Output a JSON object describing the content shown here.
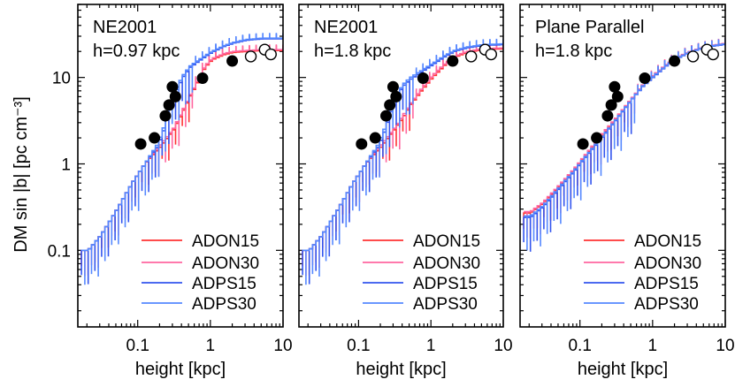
{
  "chart_data": [
    {
      "type": "line",
      "panel": 1,
      "title": "NE2001",
      "subtitle": "h=0.97 kpc",
      "xlabel": "height [kpc]",
      "ylabel": "DM sin |b| [pc cm⁻³]",
      "xscale": "log",
      "yscale": "log",
      "xlim": [
        0.015,
        10
      ],
      "ylim": [
        0.013,
        70
      ],
      "xticks": [
        {
          "v": 0.1,
          "label": "0.1"
        },
        {
          "v": 1,
          "label": "1"
        },
        {
          "v": 10,
          "label": "10"
        }
      ],
      "yticks": [
        {
          "v": 0.1,
          "label": "0.1"
        },
        {
          "v": 1,
          "label": "1"
        },
        {
          "v": 10,
          "label": "10"
        }
      ],
      "legend_position": "bottom-right",
      "series": [
        {
          "name": "ADON15",
          "color": "#ff3333",
          "x": [
            0.02,
            0.03,
            0.05,
            0.08,
            0.12,
            0.2,
            0.3,
            0.4,
            0.5,
            0.6,
            0.7,
            0.8,
            1,
            1.5,
            2,
            3,
            5,
            10
          ],
          "y": [
            0.1,
            0.15,
            0.3,
            0.6,
            1.0,
            1.6,
            2.5,
            4.0,
            6.0,
            8.0,
            10.5,
            13,
            16,
            18.5,
            19.5,
            20,
            20.5,
            20.5
          ]
        },
        {
          "name": "ADON30",
          "color": "#ff66a0",
          "x": [
            0.02,
            0.03,
            0.05,
            0.08,
            0.12,
            0.2,
            0.3,
            0.4,
            0.5,
            0.6,
            0.7,
            0.8,
            1,
            1.5,
            2,
            3,
            5,
            10
          ],
          "y": [
            0.1,
            0.15,
            0.3,
            0.6,
            1.0,
            1.7,
            2.6,
            4.2,
            6.2,
            8.3,
            10.8,
            13.5,
            16.5,
            19,
            20,
            20.5,
            21,
            21
          ]
        },
        {
          "name": "ADPS15",
          "color": "#3355ee",
          "x": [
            0.02,
            0.03,
            0.05,
            0.08,
            0.12,
            0.18,
            0.22,
            0.26,
            0.3,
            0.35,
            0.4,
            0.5,
            0.7,
            1,
            1.5,
            2,
            3,
            5,
            10
          ],
          "y": [
            0.1,
            0.15,
            0.3,
            0.6,
            1.0,
            1.6,
            2.5,
            4.0,
            6.0,
            8.0,
            10,
            13,
            16,
            19.5,
            23,
            25,
            27,
            28,
            28
          ]
        },
        {
          "name": "ADPS30",
          "color": "#5588ff",
          "x": [
            0.02,
            0.03,
            0.05,
            0.08,
            0.12,
            0.18,
            0.22,
            0.26,
            0.3,
            0.35,
            0.4,
            0.5,
            0.7,
            1,
            1.5,
            2,
            3,
            5,
            10
          ],
          "y": [
            0.1,
            0.15,
            0.3,
            0.6,
            1.0,
            1.7,
            2.7,
            4.3,
            6.4,
            8.5,
            10.5,
            13.5,
            16.5,
            20,
            23.5,
            25.5,
            27.5,
            28.5,
            28.5
          ]
        }
      ],
      "observations": {
        "filled": [
          {
            "x": 0.11,
            "y": 1.7
          },
          {
            "x": 0.17,
            "y": 2.0
          },
          {
            "x": 0.24,
            "y": 3.6
          },
          {
            "x": 0.27,
            "y": 4.8
          },
          {
            "x": 0.3,
            "y": 7.8
          },
          {
            "x": 0.33,
            "y": 6.0
          },
          {
            "x": 0.78,
            "y": 9.8
          },
          {
            "x": 2.0,
            "y": 15.5
          }
        ],
        "open": [
          {
            "x": 3.6,
            "y": 17.5
          },
          {
            "x": 5.6,
            "y": 21.0
          },
          {
            "x": 6.8,
            "y": 18.5
          }
        ]
      }
    },
    {
      "type": "line",
      "panel": 2,
      "title": "NE2001",
      "subtitle": "h=1.8 kpc",
      "xlabel": "height [kpc]",
      "xscale": "log",
      "yscale": "log",
      "xlim": [
        0.015,
        10
      ],
      "ylim": [
        0.013,
        70
      ],
      "xticks": [
        {
          "v": 0.1,
          "label": "0.1"
        },
        {
          "v": 1,
          "label": "1"
        },
        {
          "v": 10,
          "label": "10"
        }
      ],
      "legend_position": "bottom-right",
      "series": [
        {
          "name": "ADON15",
          "color": "#ff3333",
          "x": [
            0.02,
            0.03,
            0.05,
            0.08,
            0.12,
            0.2,
            0.3,
            0.4,
            0.5,
            0.7,
            1,
            1.5,
            2,
            3,
            5,
            10
          ],
          "y": [
            0.1,
            0.15,
            0.3,
            0.6,
            1.0,
            1.6,
            2.5,
            3.5,
            4.8,
            7.0,
            10,
            14,
            17,
            19.5,
            21,
            21.5
          ]
        },
        {
          "name": "ADON30",
          "color": "#ff66a0",
          "x": [
            0.02,
            0.03,
            0.05,
            0.08,
            0.12,
            0.2,
            0.3,
            0.4,
            0.5,
            0.7,
            1,
            1.5,
            2,
            3,
            5,
            10
          ],
          "y": [
            0.1,
            0.15,
            0.3,
            0.6,
            1.0,
            1.7,
            2.6,
            3.7,
            5.0,
            7.3,
            10.5,
            14.5,
            17.5,
            20,
            21.5,
            22
          ]
        },
        {
          "name": "ADPS15",
          "color": "#3355ee",
          "x": [
            0.02,
            0.03,
            0.05,
            0.08,
            0.12,
            0.18,
            0.22,
            0.26,
            0.3,
            0.35,
            0.4,
            0.5,
            0.7,
            1,
            1.5,
            2,
            3,
            5,
            10
          ],
          "y": [
            0.1,
            0.15,
            0.3,
            0.6,
            1.0,
            1.6,
            2.4,
            3.7,
            5.4,
            6.8,
            8.0,
            9.5,
            11.5,
            14,
            17.5,
            20,
            22,
            23.5,
            24
          ]
        },
        {
          "name": "ADPS30",
          "color": "#5588ff",
          "x": [
            0.02,
            0.03,
            0.05,
            0.08,
            0.12,
            0.18,
            0.22,
            0.26,
            0.3,
            0.35,
            0.4,
            0.5,
            0.7,
            1,
            1.5,
            2,
            3,
            5,
            10
          ],
          "y": [
            0.1,
            0.15,
            0.3,
            0.6,
            1.0,
            1.7,
            2.6,
            3.9,
            5.7,
            7.1,
            8.4,
            10,
            12,
            14.5,
            18,
            20.5,
            22.5,
            24,
            24.5
          ]
        }
      ],
      "observations": {
        "filled": [
          {
            "x": 0.11,
            "y": 1.7
          },
          {
            "x": 0.17,
            "y": 2.0
          },
          {
            "x": 0.24,
            "y": 3.6
          },
          {
            "x": 0.27,
            "y": 4.8
          },
          {
            "x": 0.3,
            "y": 7.8
          },
          {
            "x": 0.33,
            "y": 6.0
          },
          {
            "x": 0.78,
            "y": 9.8
          },
          {
            "x": 2.0,
            "y": 15.5
          }
        ],
        "open": [
          {
            "x": 3.6,
            "y": 17.5
          },
          {
            "x": 5.6,
            "y": 21.0
          },
          {
            "x": 6.8,
            "y": 18.5
          }
        ]
      }
    },
    {
      "type": "line",
      "panel": 3,
      "title": "Plane Parallel",
      "subtitle": "h=1.8 kpc",
      "xlabel": "height [kpc]",
      "xscale": "log",
      "yscale": "log",
      "xlim": [
        0.015,
        10
      ],
      "ylim": [
        0.013,
        70
      ],
      "xticks": [
        {
          "v": 0.1,
          "label": "0.1"
        },
        {
          "v": 1,
          "label": "1"
        },
        {
          "v": 10,
          "label": "10"
        }
      ],
      "legend_position": "bottom-right",
      "series": [
        {
          "name": "ADON15",
          "color": "#ff3333",
          "x": [
            0.02,
            0.03,
            0.05,
            0.08,
            0.12,
            0.2,
            0.3,
            0.4,
            0.5,
            0.7,
            1,
            1.5,
            2,
            3,
            5,
            10
          ],
          "y": [
            0.27,
            0.35,
            0.55,
            0.85,
            1.3,
            2.2,
            3.3,
            4.5,
            5.7,
            8.0,
            10.5,
            14,
            16.5,
            19.5,
            22.5,
            24.5
          ]
        },
        {
          "name": "ADON30",
          "color": "#ff66a0",
          "x": [
            0.02,
            0.03,
            0.05,
            0.08,
            0.12,
            0.2,
            0.3,
            0.4,
            0.5,
            0.7,
            1,
            1.5,
            2,
            3,
            5,
            10
          ],
          "y": [
            0.28,
            0.36,
            0.57,
            0.88,
            1.35,
            2.3,
            3.4,
            4.6,
            5.8,
            8.2,
            10.8,
            14.3,
            16.8,
            19.8,
            22.8,
            25
          ]
        },
        {
          "name": "ADPS15",
          "color": "#3355ee",
          "x": [
            0.02,
            0.03,
            0.05,
            0.08,
            0.12,
            0.2,
            0.3,
            0.4,
            0.5,
            0.7,
            1,
            1.5,
            2,
            3,
            5,
            10
          ],
          "y": [
            0.24,
            0.32,
            0.52,
            0.82,
            1.25,
            2.1,
            3.2,
            4.4,
            5.6,
            7.9,
            10.3,
            13.8,
            16.3,
            19.3,
            22.3,
            24.3
          ]
        },
        {
          "name": "ADPS30",
          "color": "#5588ff",
          "x": [
            0.02,
            0.03,
            0.05,
            0.08,
            0.12,
            0.2,
            0.3,
            0.4,
            0.5,
            0.7,
            1,
            1.5,
            2,
            3,
            5,
            10
          ],
          "y": [
            0.25,
            0.33,
            0.54,
            0.84,
            1.28,
            2.15,
            3.25,
            4.45,
            5.65,
            8.0,
            10.5,
            14,
            16.5,
            19.5,
            22.5,
            24.7
          ]
        }
      ],
      "observations": {
        "filled": [
          {
            "x": 0.11,
            "y": 1.7
          },
          {
            "x": 0.17,
            "y": 2.0
          },
          {
            "x": 0.24,
            "y": 3.6
          },
          {
            "x": 0.27,
            "y": 4.8
          },
          {
            "x": 0.3,
            "y": 7.8
          },
          {
            "x": 0.33,
            "y": 6.0
          },
          {
            "x": 0.78,
            "y": 9.8
          },
          {
            "x": 2.0,
            "y": 15.5
          }
        ],
        "open": [
          {
            "x": 3.6,
            "y": 17.5
          },
          {
            "x": 5.6,
            "y": 21.0
          },
          {
            "x": 6.8,
            "y": 18.5
          }
        ]
      }
    }
  ]
}
